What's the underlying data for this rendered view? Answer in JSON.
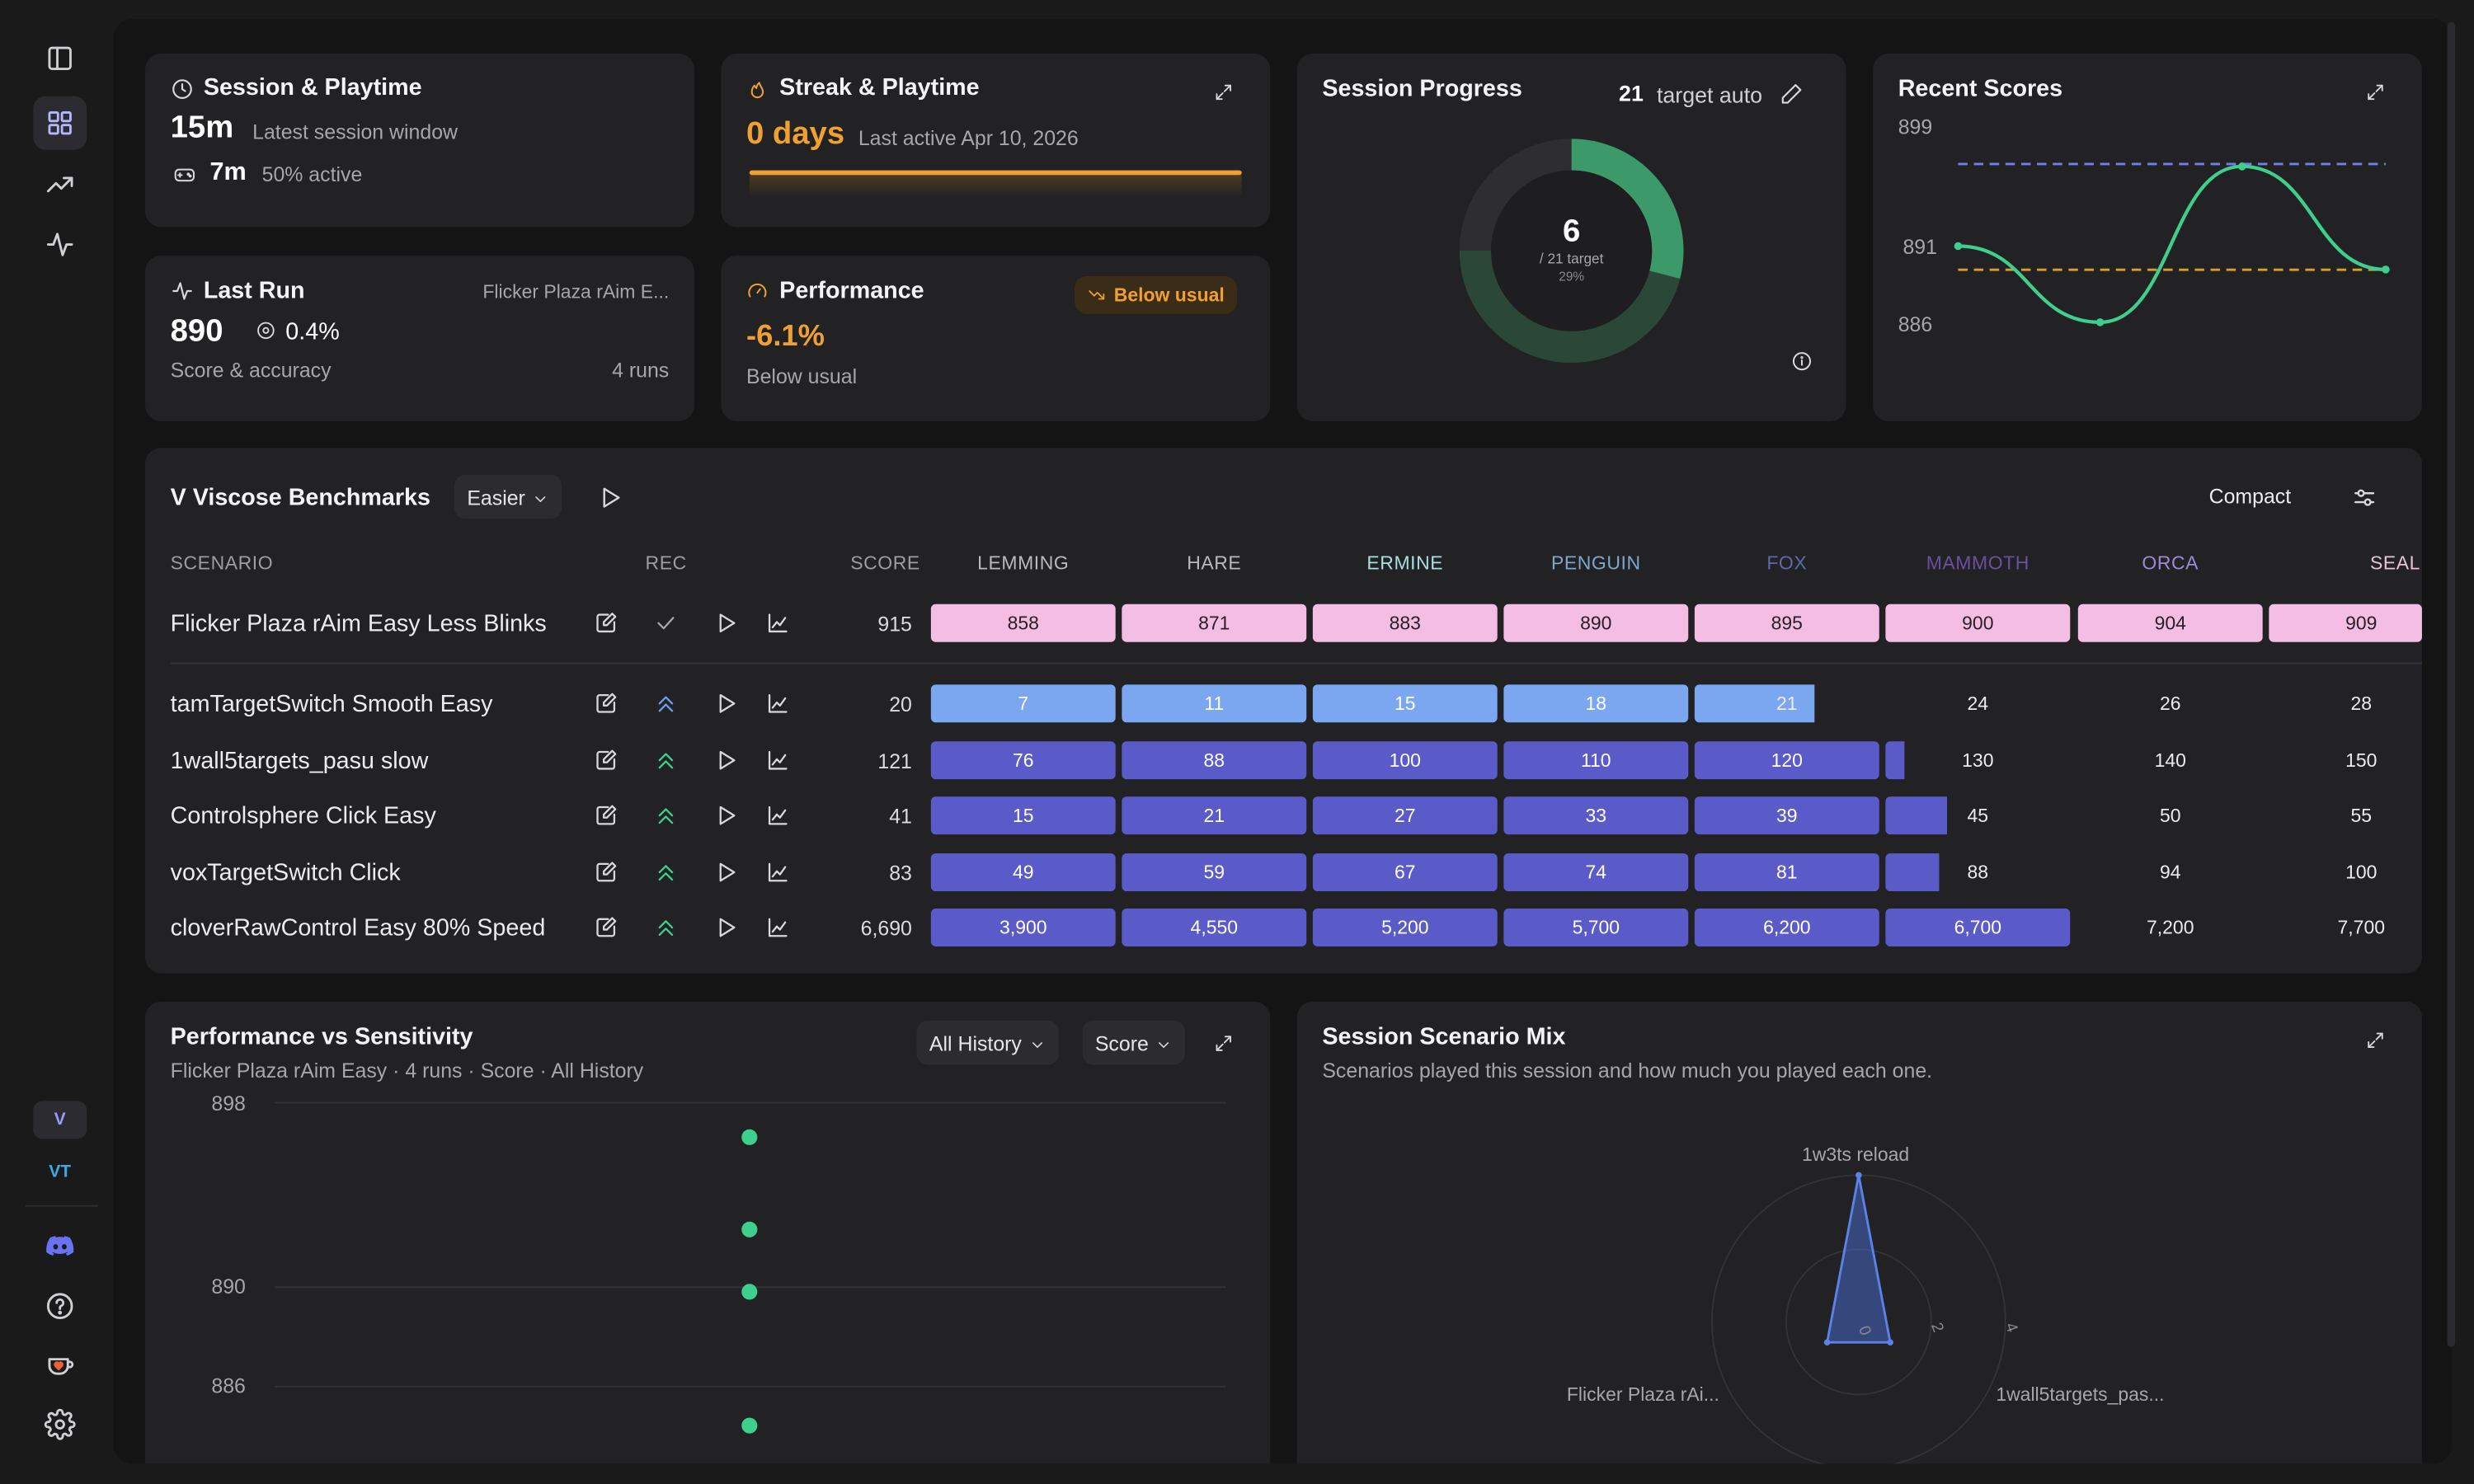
{
  "session": {
    "title": "Session & Playtime",
    "duration": "15m",
    "duration_label": "Latest session window",
    "active_time": "7m",
    "active_pct": "50% active"
  },
  "streak": {
    "title": "Streak & Playtime",
    "days": "0 days",
    "last_active": "Last active Apr 10, 2026"
  },
  "last_run": {
    "title": "Last Run",
    "scenario": "Flicker Plaza rAim E...",
    "score": "890",
    "accuracy": "0.4%",
    "caption": "Score & accuracy",
    "runs": "4 runs"
  },
  "performance": {
    "title": "Performance",
    "badge": "Below usual",
    "delta": "-6.1%",
    "caption": "Below usual"
  },
  "progress": {
    "title": "Session Progress",
    "target_num": "21",
    "target_label": "target auto",
    "center_value": "6",
    "center_target": "/ 21 target",
    "center_pct": "29%",
    "fraction": 0.29
  },
  "recent": {
    "title": "Recent Scores",
    "y_ticks": [
      "899",
      "891",
      "886"
    ],
    "values": [
      892,
      885.5,
      898.8,
      890
    ]
  },
  "benchmarks": {
    "title": "V Viscose Benchmarks",
    "difficulty": "Easier",
    "view_mode": "Compact",
    "col_scenario": "SCENARIO",
    "col_rec": "REC",
    "col_score": "SCORE",
    "ranks": [
      {
        "name": "LEMMING",
        "color": "#b9b9bf"
      },
      {
        "name": "HARE",
        "color": "#b9b9bf"
      },
      {
        "name": "ERMINE",
        "color": "#a9dfe0"
      },
      {
        "name": "PENGUIN",
        "color": "#7fa6cf"
      },
      {
        "name": "FOX",
        "color": "#5e6aa8"
      },
      {
        "name": "MAMMOTH",
        "color": "#6c4f9e"
      },
      {
        "name": "ORCA",
        "color": "#9c8ad8"
      },
      {
        "name": "SEAL",
        "color": "#e3c6d8"
      }
    ],
    "rows": [
      {
        "name": "Flicker Plaza rAim Easy Less Blinks",
        "rec": "check",
        "score": "915",
        "progress": 8,
        "style": "pink",
        "thresholds": [
          "858",
          "871",
          "883",
          "890",
          "895",
          "900",
          "904",
          "909"
        ]
      },
      {
        "name": "tamTargetSwitch Smooth Easy",
        "rec": "up",
        "score": "20",
        "progress": 4.65,
        "style": "blue",
        "thresholds": [
          "7",
          "11",
          "15",
          "18",
          "21",
          "24",
          "26",
          "28"
        ]
      },
      {
        "name": "1wall5targets_pasu slow",
        "rec": "up",
        "score": "121",
        "progress": 5.1,
        "style": "purple",
        "thresholds": [
          "76",
          "88",
          "100",
          "110",
          "120",
          "130",
          "140",
          "150"
        ]
      },
      {
        "name": "Controlsphere Click Easy",
        "rec": "up",
        "score": "41",
        "progress": 5.33,
        "style": "purple",
        "thresholds": [
          "15",
          "21",
          "27",
          "33",
          "39",
          "45",
          "50",
          "55"
        ]
      },
      {
        "name": "voxTargetSwitch Click",
        "rec": "up",
        "score": "83",
        "progress": 5.29,
        "style": "purple",
        "thresholds": [
          "49",
          "59",
          "67",
          "74",
          "81",
          "88",
          "94",
          "100"
        ]
      },
      {
        "name": "cloverRawControl Easy 80% Speed",
        "rec": "up",
        "score": "6,690",
        "progress": 6,
        "style": "purple",
        "thresholds": [
          "3,900",
          "4,550",
          "5,200",
          "5,700",
          "6,200",
          "6,700",
          "7,200",
          "7,700"
        ]
      }
    ]
  },
  "perf_sens": {
    "title": "Performance vs Sensitivity",
    "subtitle": "Flicker Plaza rAim Easy · 4 runs · Score · All History",
    "filter_history": "All History",
    "filter_metric": "Score",
    "y_ticks": [
      "898",
      "890",
      "886"
    ],
    "points": [
      896.5,
      892.5,
      889.8,
      884
    ]
  },
  "mix": {
    "title": "Session Scenario Mix",
    "subtitle": "Scenarios played this session and how much you played each one.",
    "axes": [
      "1w3ts reload",
      "1wall5targets_pas...",
      "Flicker Plaza rAi..."
    ],
    "values": [
      4,
      0.3,
      0.3
    ],
    "rings": [
      "0",
      "2",
      "4"
    ]
  },
  "sidebar": {
    "badge_v": "V",
    "badge_vt": "VT"
  },
  "colors": {
    "accent": "#7a7aff",
    "orange": "#f0a030",
    "green": "#3ecf8e",
    "pink": "#f4bde4",
    "blue": "#7aa7f0",
    "purple": "#5a5bc9"
  }
}
